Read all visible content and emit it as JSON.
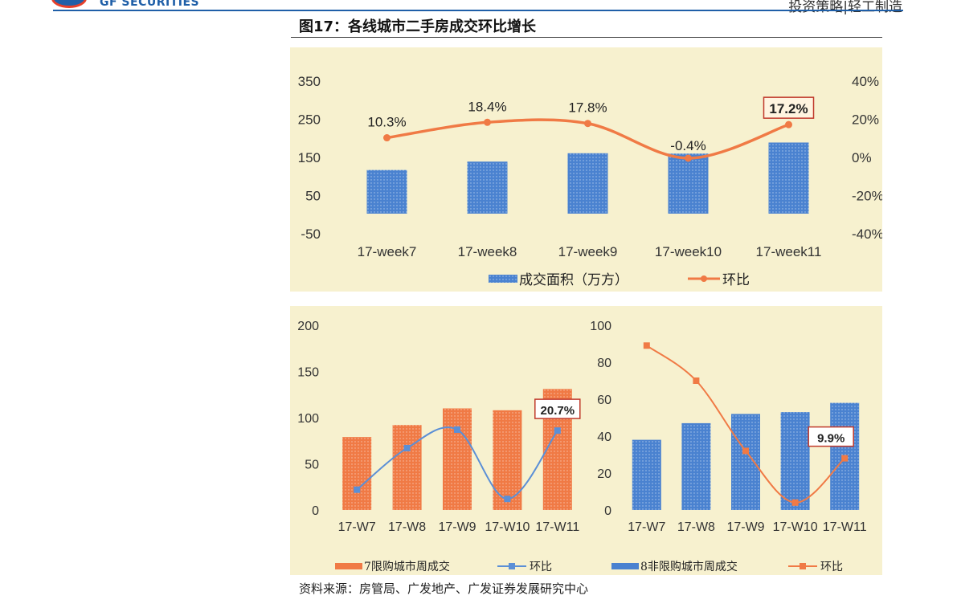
{
  "header": {
    "logo_text": "GF SECURITIES",
    "right_text": "投资策略|轻工制造"
  },
  "figure": {
    "title": "图17：各线城市二手房成交环比增长",
    "source": "资料来源：房管局、广发地产、广发证券发展研究中心"
  },
  "colors": {
    "bar_blue": "#4a82d0",
    "bar_orange": "#f07a45",
    "line_orange": "#f07a45",
    "line_blue": "#5b8fd6",
    "panel_bg": "#f7f1cf",
    "callout_border": "#c0392b"
  },
  "chart_data": [
    {
      "type": "bar",
      "categories": [
        "17-week7",
        "17-week8",
        "17-week9",
        "17-week10",
        "17-week11"
      ],
      "series": [
        {
          "name": "成交面积（万方）",
          "type": "bar",
          "axis": "left",
          "values": [
            117,
            139,
            161,
            160,
            189
          ]
        },
        {
          "name": "环比",
          "type": "line",
          "axis": "right",
          "values": [
            10.3,
            18.4,
            17.8,
            -0.4,
            17.2
          ],
          "labels": [
            "10.3%",
            "18.4%",
            "17.8%",
            "-0.4%",
            "17.2%"
          ],
          "highlight_index": 4
        }
      ],
      "y_left": {
        "ticks": [
          "350",
          "250",
          "150",
          "50",
          "-50"
        ],
        "lim": [
          -50,
          350
        ]
      },
      "y_right": {
        "ticks": [
          "40%",
          "20%",
          "0%",
          "-20%",
          "-40%"
        ],
        "lim": [
          -40,
          40
        ]
      },
      "legend": [
        "成交面积（万方）",
        "环比"
      ],
      "legend_position": "bottom"
    },
    {
      "type": "bar",
      "categories": [
        "17-W7",
        "17-W8",
        "17-W9",
        "17-W10",
        "17-W11"
      ],
      "series": [
        {
          "name": "7限购城市周成交",
          "type": "bar",
          "values": [
            79,
            92,
            110,
            108,
            131
          ]
        },
        {
          "name": "环比",
          "type": "line",
          "values": [
            22,
            67,
            87,
            12,
            86
          ],
          "highlight_label": "20.7%",
          "highlight_index": 4
        }
      ],
      "y": {
        "ticks": [
          "200",
          "150",
          "100",
          "50",
          "0"
        ],
        "lim": [
          0,
          200
        ]
      },
      "legend": [
        "7限购城市周成交",
        "环比"
      ],
      "legend_position": "bottom"
    },
    {
      "type": "bar",
      "categories": [
        "17-W7",
        "17-W8",
        "17-W9",
        "17-W10",
        "17-W11"
      ],
      "series": [
        {
          "name": "8非限购城市周成交",
          "type": "bar",
          "values": [
            38,
            47,
            52,
            53,
            58
          ]
        },
        {
          "name": "环比",
          "type": "line",
          "values": [
            89,
            70,
            32,
            4,
            28
          ],
          "highlight_label": "9.9%",
          "highlight_index": 4
        }
      ],
      "y": {
        "ticks": [
          "100",
          "80",
          "60",
          "40",
          "20",
          "0"
        ],
        "lim": [
          0,
          100
        ]
      },
      "legend": [
        "8非限购城市周成交",
        "环比"
      ],
      "legend_position": "bottom"
    }
  ]
}
